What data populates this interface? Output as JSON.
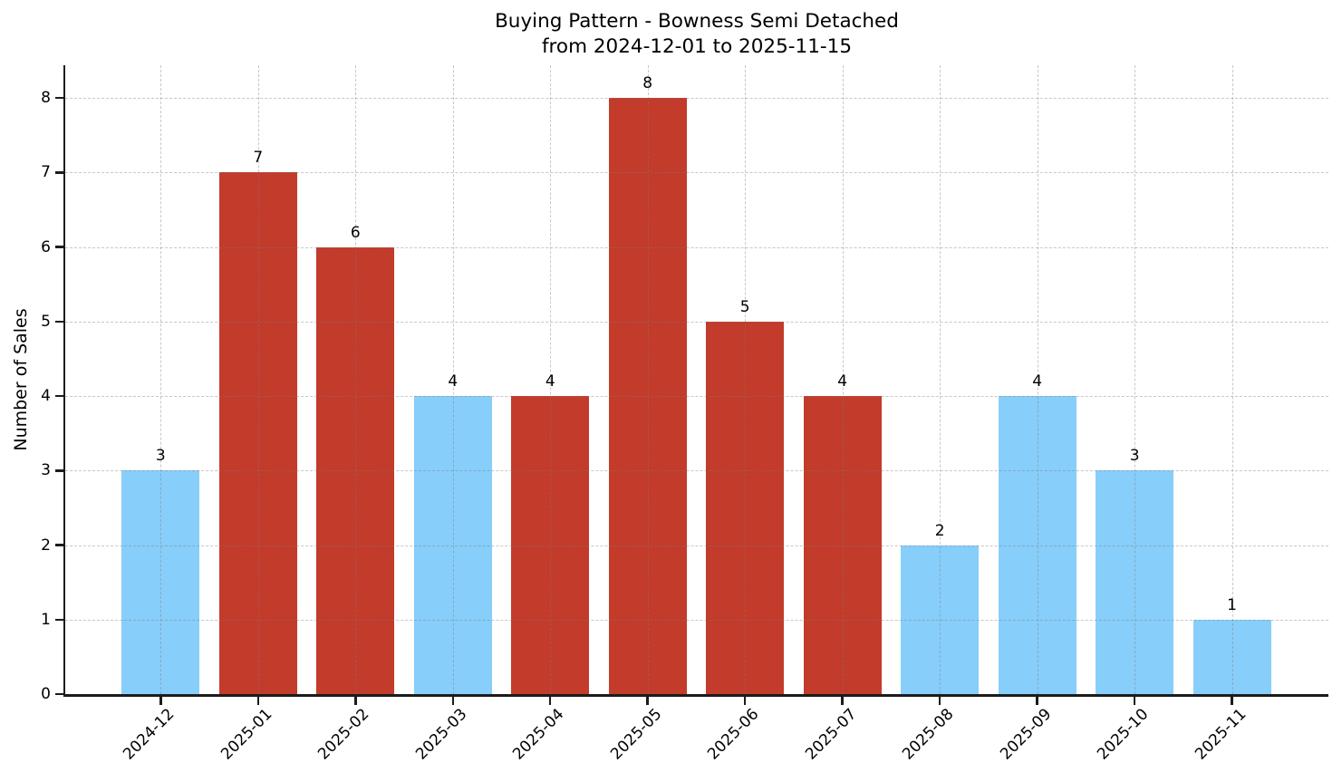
{
  "title": {
    "line1": "Buying Pattern - Bowness Semi Detached",
    "line2": "from 2024-12-01 to 2025-11-15"
  },
  "chart_data": {
    "type": "bar",
    "title": "Buying Pattern - Bowness Semi Detached\nfrom 2024-12-01 to 2025-11-15",
    "categories": [
      "2024-12",
      "2025-01",
      "2025-02",
      "2025-03",
      "2025-04",
      "2025-05",
      "2025-06",
      "2025-07",
      "2025-08",
      "2025-09",
      "2025-10",
      "2025-11"
    ],
    "values": [
      3,
      7,
      6,
      4,
      4,
      8,
      5,
      4,
      2,
      4,
      3,
      1
    ],
    "bar_colors": [
      "#87CEFA",
      "#C23B2B",
      "#C23B2B",
      "#87CEFA",
      "#C23B2B",
      "#C23B2B",
      "#C23B2B",
      "#C23B2B",
      "#87CEFA",
      "#87CEFA",
      "#87CEFA",
      "#87CEFA"
    ],
    "xlabel": "",
    "ylabel": "Number of Sales",
    "ylim": [
      0,
      8.44
    ],
    "yticks": [
      0,
      1,
      2,
      3,
      4,
      5,
      6,
      7,
      8
    ],
    "grid": true,
    "grid_style": "dashed",
    "legend": "none",
    "colors": {
      "bar_blue": "#87CEFA",
      "bar_red": "#C23B2B",
      "axis": "#1c1c1c",
      "grid": "#b3b3b3",
      "text": "#000000",
      "background": "#ffffff"
    }
  }
}
